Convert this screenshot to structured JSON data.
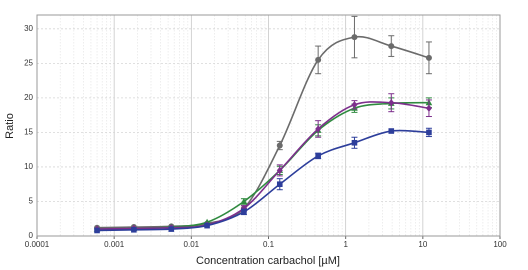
{
  "chart_data": {
    "type": "scatter",
    "x_label": "Concentration carbachol [µM]",
    "y_label": "Ratio",
    "x_scale": "log",
    "xlim": [
      0.0001,
      100
    ],
    "xticks": [
      0.0001,
      0.001,
      0.01,
      0.1,
      1,
      10,
      100
    ],
    "ylim": [
      0,
      32
    ],
    "yticks": [
      0,
      5,
      10,
      15,
      20,
      25,
      30
    ],
    "grid": true,
    "minor_grid": true,
    "x": [
      0.0006,
      0.0018,
      0.0055,
      0.016,
      0.048,
      0.14,
      0.44,
      1.3,
      3.9,
      12
    ],
    "series": [
      {
        "color": "#6b6b6b",
        "marker": "circle",
        "values": [
          1.2,
          1.3,
          1.4,
          1.8,
          4.0,
          13.1,
          25.5,
          28.8,
          27.5,
          25.8
        ],
        "errors": [
          null,
          null,
          null,
          null,
          null,
          0.6,
          2.0,
          3.0,
          1.5,
          2.3
        ]
      },
      {
        "color": "#2f8a3f",
        "marker": "triangle",
        "values": [
          1.0,
          1.1,
          1.3,
          2.0,
          5.0,
          9.5,
          15.3,
          18.5,
          19.2,
          19.3
        ],
        "errors": [
          null,
          null,
          null,
          null,
          0.4,
          0.6,
          0.8,
          0.6,
          0.8,
          0.7
        ]
      },
      {
        "color": "#7d2f8c",
        "marker": "diamond",
        "values": [
          1.0,
          1.1,
          1.2,
          1.6,
          4.0,
          9.5,
          15.5,
          19.0,
          19.3,
          18.5
        ],
        "errors": [
          null,
          null,
          null,
          null,
          0.4,
          0.8,
          1.2,
          0.6,
          1.3,
          1.2
        ]
      },
      {
        "color": "#2d3e9b",
        "marker": "square",
        "values": [
          0.8,
          0.9,
          1.0,
          1.5,
          3.5,
          7.5,
          11.6,
          13.5,
          15.2,
          15.0
        ],
        "errors": [
          null,
          null,
          null,
          null,
          0.4,
          0.8,
          0.4,
          0.8,
          null,
          0.6
        ]
      }
    ]
  }
}
